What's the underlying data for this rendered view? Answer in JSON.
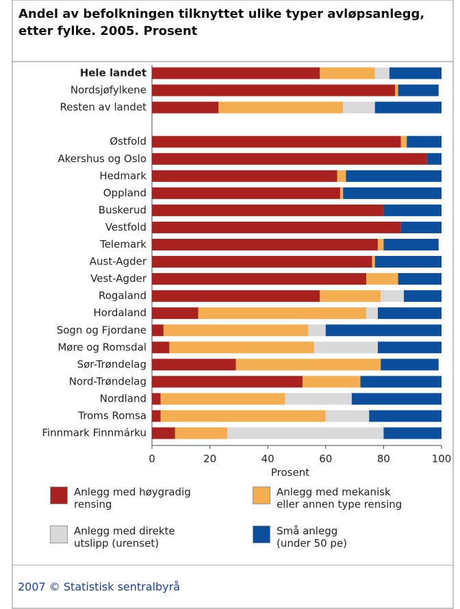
{
  "chart_data": {
    "type": "stacked-barh",
    "title": "Andel av befolkningen tilknyttet ulike typer avløpsanlegg, etter fylke. 2005. Prosent",
    "categories": [
      "Hele landet",
      "Nordsjøfylkene",
      "Resten av landet",
      null,
      "Østfold",
      "Akershus og Oslo",
      "Hedmark",
      "Oppland",
      "Buskerud",
      "Vestfold",
      "Telemark",
      "Aust-Agder",
      "Vest-Agder",
      "Rogaland",
      "Hordaland",
      "Sogn og Fjordane",
      "Møre og Romsdal",
      "Sør-Trøndelag",
      "Nord-Trøndelag",
      "Nordland",
      "Troms Romsa",
      "Finnmark Finnmárku"
    ],
    "series": [
      {
        "name": "Anlegg med høygradig\nrensing",
        "color": "#a8231f",
        "values": [
          58,
          84,
          23,
          null,
          86,
          95,
          64,
          65,
          80,
          86,
          78,
          76,
          74,
          58,
          16,
          4,
          6,
          29,
          52,
          3,
          3,
          8
        ]
      },
      {
        "name": "Anlegg med mekanisk\neller annen type rensing",
        "color": "#f5ae4f",
        "values": [
          19,
          1,
          43,
          null,
          2,
          0,
          3,
          1,
          0,
          0,
          2,
          1,
          11,
          21,
          58,
          50,
          50,
          50,
          20,
          43,
          57,
          18
        ]
      },
      {
        "name": "Anlegg med direkte\nutslipp (urenset)",
        "color": "#d9d9d9",
        "values": [
          5,
          0,
          11,
          null,
          0,
          0,
          0,
          0,
          0,
          0,
          0,
          0,
          0,
          8,
          4,
          6,
          22,
          0,
          0,
          23,
          15,
          54
        ]
      },
      {
        "name": "Små anlegg\n(under 50 pe)",
        "color": "#0b4f9c",
        "values": [
          18,
          14,
          23,
          null,
          12,
          5,
          33,
          34,
          20,
          14,
          19,
          23,
          15,
          13,
          22,
          40,
          22,
          20,
          28,
          31,
          25,
          20
        ]
      }
    ],
    "xlim": [
      0,
      100
    ],
    "xticks": [
      0,
      20,
      40,
      60,
      80,
      100
    ],
    "xlabel": "Prosent",
    "source": "2007 © Statistisk sentralbyrå"
  }
}
